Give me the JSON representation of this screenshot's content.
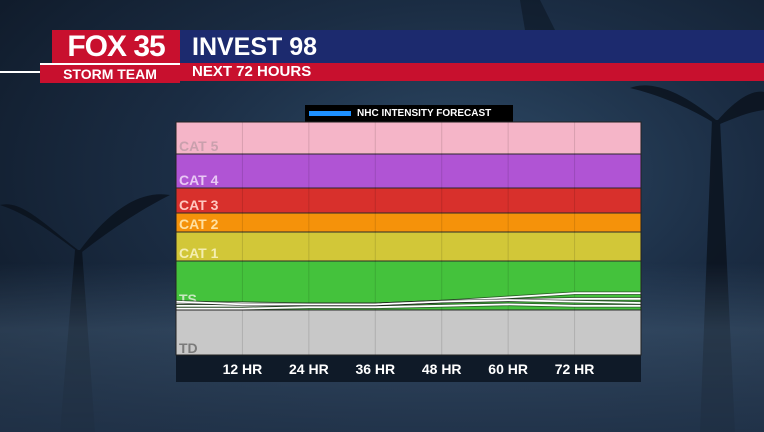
{
  "header": {
    "logo_top": "FOX 35",
    "logo_bottom": "STORM TEAM",
    "title": "INVEST 98",
    "subtitle": "NEXT 72 HOURS"
  },
  "colors": {
    "td": "#c8c8c8",
    "ts": "#44c23c",
    "cat1": "#d2c738",
    "cat2": "#f5920a",
    "cat3": "#d8302c",
    "cat4": "#b054d4",
    "cat5": "#f5b5c8",
    "forecast_line": "#1e90ff"
  },
  "chart_data": {
    "type": "line",
    "legend": [
      "NHC INTENSITY FORECAST"
    ],
    "x": [
      "12 HR",
      "24 HR",
      "36 HR",
      "48 HR",
      "60 HR",
      "72 HR"
    ],
    "bands": [
      {
        "label": "TD",
        "min": 0,
        "max": 38
      },
      {
        "label": "TS",
        "min": 39,
        "max": 73
      },
      {
        "label": "CAT 1",
        "min": 74,
        "max": 95
      },
      {
        "label": "CAT 2",
        "min": 96,
        "max": 110
      },
      {
        "label": "CAT 3",
        "min": 111,
        "max": 129
      },
      {
        "label": "CAT 4",
        "min": 130,
        "max": 156
      },
      {
        "label": "CAT 5",
        "min": 157,
        "max": 180
      }
    ],
    "ylim": [
      0,
      180
    ],
    "series": [
      {
        "x": [
          0,
          12,
          24,
          36,
          48,
          60,
          72,
          84
        ],
        "values": [
          42,
          42,
          43,
          43,
          45,
          46,
          47,
          47
        ]
      },
      {
        "x": [
          0,
          12,
          24,
          36,
          48,
          60,
          72,
          84
        ],
        "values": [
          40,
          40,
          41,
          41,
          42,
          43,
          42,
          42
        ]
      },
      {
        "x": [
          0,
          12,
          24,
          36,
          48,
          60,
          72,
          84
        ],
        "values": [
          44,
          44,
          43,
          43,
          45,
          48,
          51,
          51
        ]
      },
      {
        "x": [
          0,
          12,
          24,
          36,
          48,
          60,
          72,
          84
        ],
        "values": [
          45,
          43,
          43,
          43,
          45,
          46,
          45,
          44
        ]
      }
    ]
  }
}
